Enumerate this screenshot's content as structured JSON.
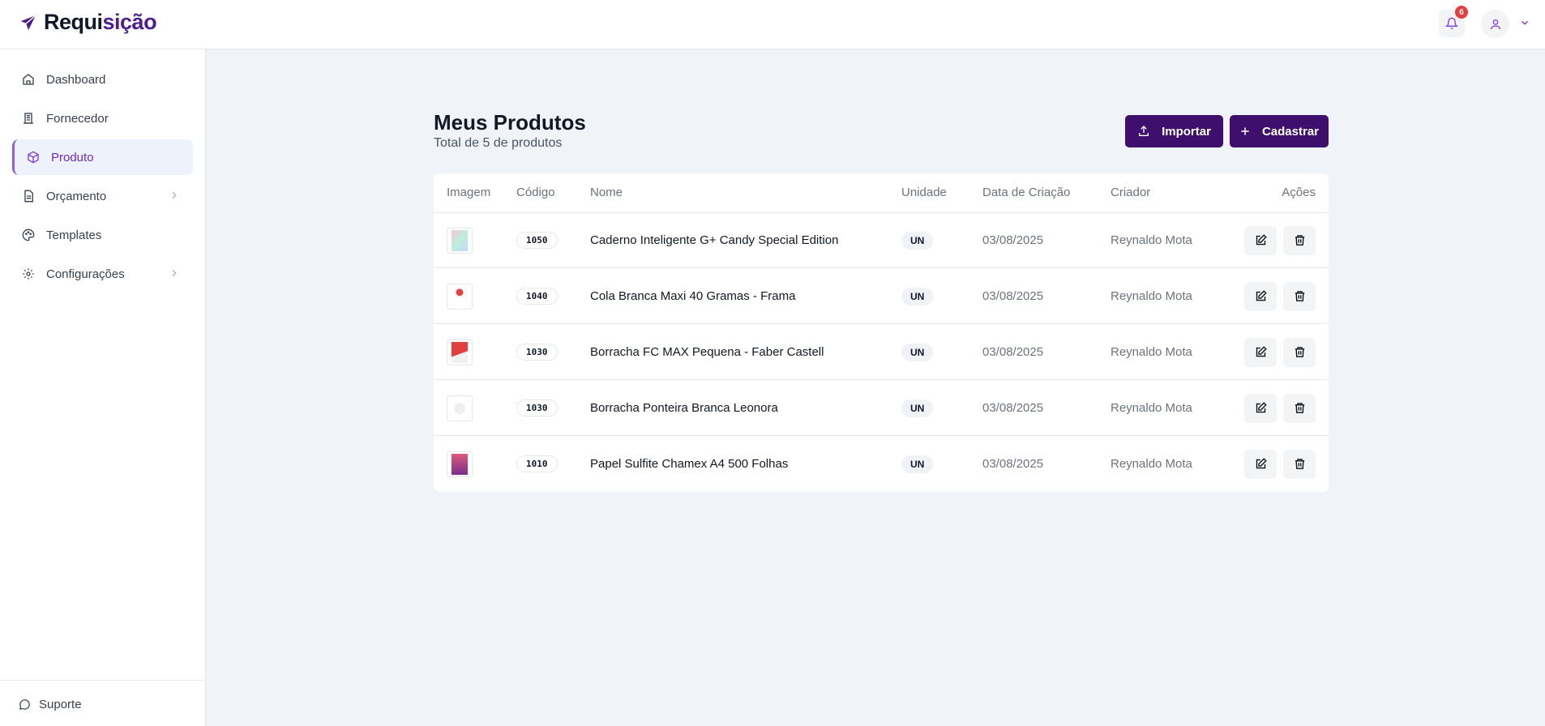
{
  "header": {
    "logo_dark": "Requi",
    "logo_accent": "sição",
    "notifications_count": "6",
    "accent_color": "#4c1d95"
  },
  "sidebar": {
    "items": [
      {
        "label": "Dashboard",
        "icon": "home-icon"
      },
      {
        "label": "Fornecedor",
        "icon": "building-icon"
      },
      {
        "label": "Produto",
        "icon": "box-icon",
        "active": true
      },
      {
        "label": "Orçamento",
        "icon": "document-icon",
        "has_submenu": true
      },
      {
        "label": "Templates",
        "icon": "palette-icon"
      },
      {
        "label": "Configurações",
        "icon": "gear-icon",
        "has_submenu": true
      }
    ],
    "support_label": "Suporte"
  },
  "main": {
    "title": "Meus Produtos",
    "subtitle": "Total de 5 de produtos",
    "import_label": "Importar",
    "create_label": "Cadastrar",
    "columns": [
      "Imagem",
      "Código",
      "Nome",
      "Unidade",
      "Data de Criação",
      "Criador",
      "Ações"
    ],
    "rows": [
      {
        "code": "1050",
        "name": "Caderno Inteligente G+ Candy Special Edition",
        "unit": "UN",
        "date": "03/08/2025",
        "creator": "Reynaldo Mota"
      },
      {
        "code": "1040",
        "name": "Cola Branca Maxi 40 Gramas - Frama",
        "unit": "UN",
        "date": "03/08/2025",
        "creator": "Reynaldo Mota"
      },
      {
        "code": "1030",
        "name": "Borracha FC MAX Pequena - Faber Castell",
        "unit": "UN",
        "date": "03/08/2025",
        "creator": "Reynaldo Mota"
      },
      {
        "code": "1030",
        "name": "Borracha Ponteira Branca Leonora",
        "unit": "UN",
        "date": "03/08/2025",
        "creator": "Reynaldo Mota"
      },
      {
        "code": "1010",
        "name": "Papel Sulfite Chamex A4 500 Folhas",
        "unit": "UN",
        "date": "03/08/2025",
        "creator": "Reynaldo Mota"
      }
    ]
  }
}
